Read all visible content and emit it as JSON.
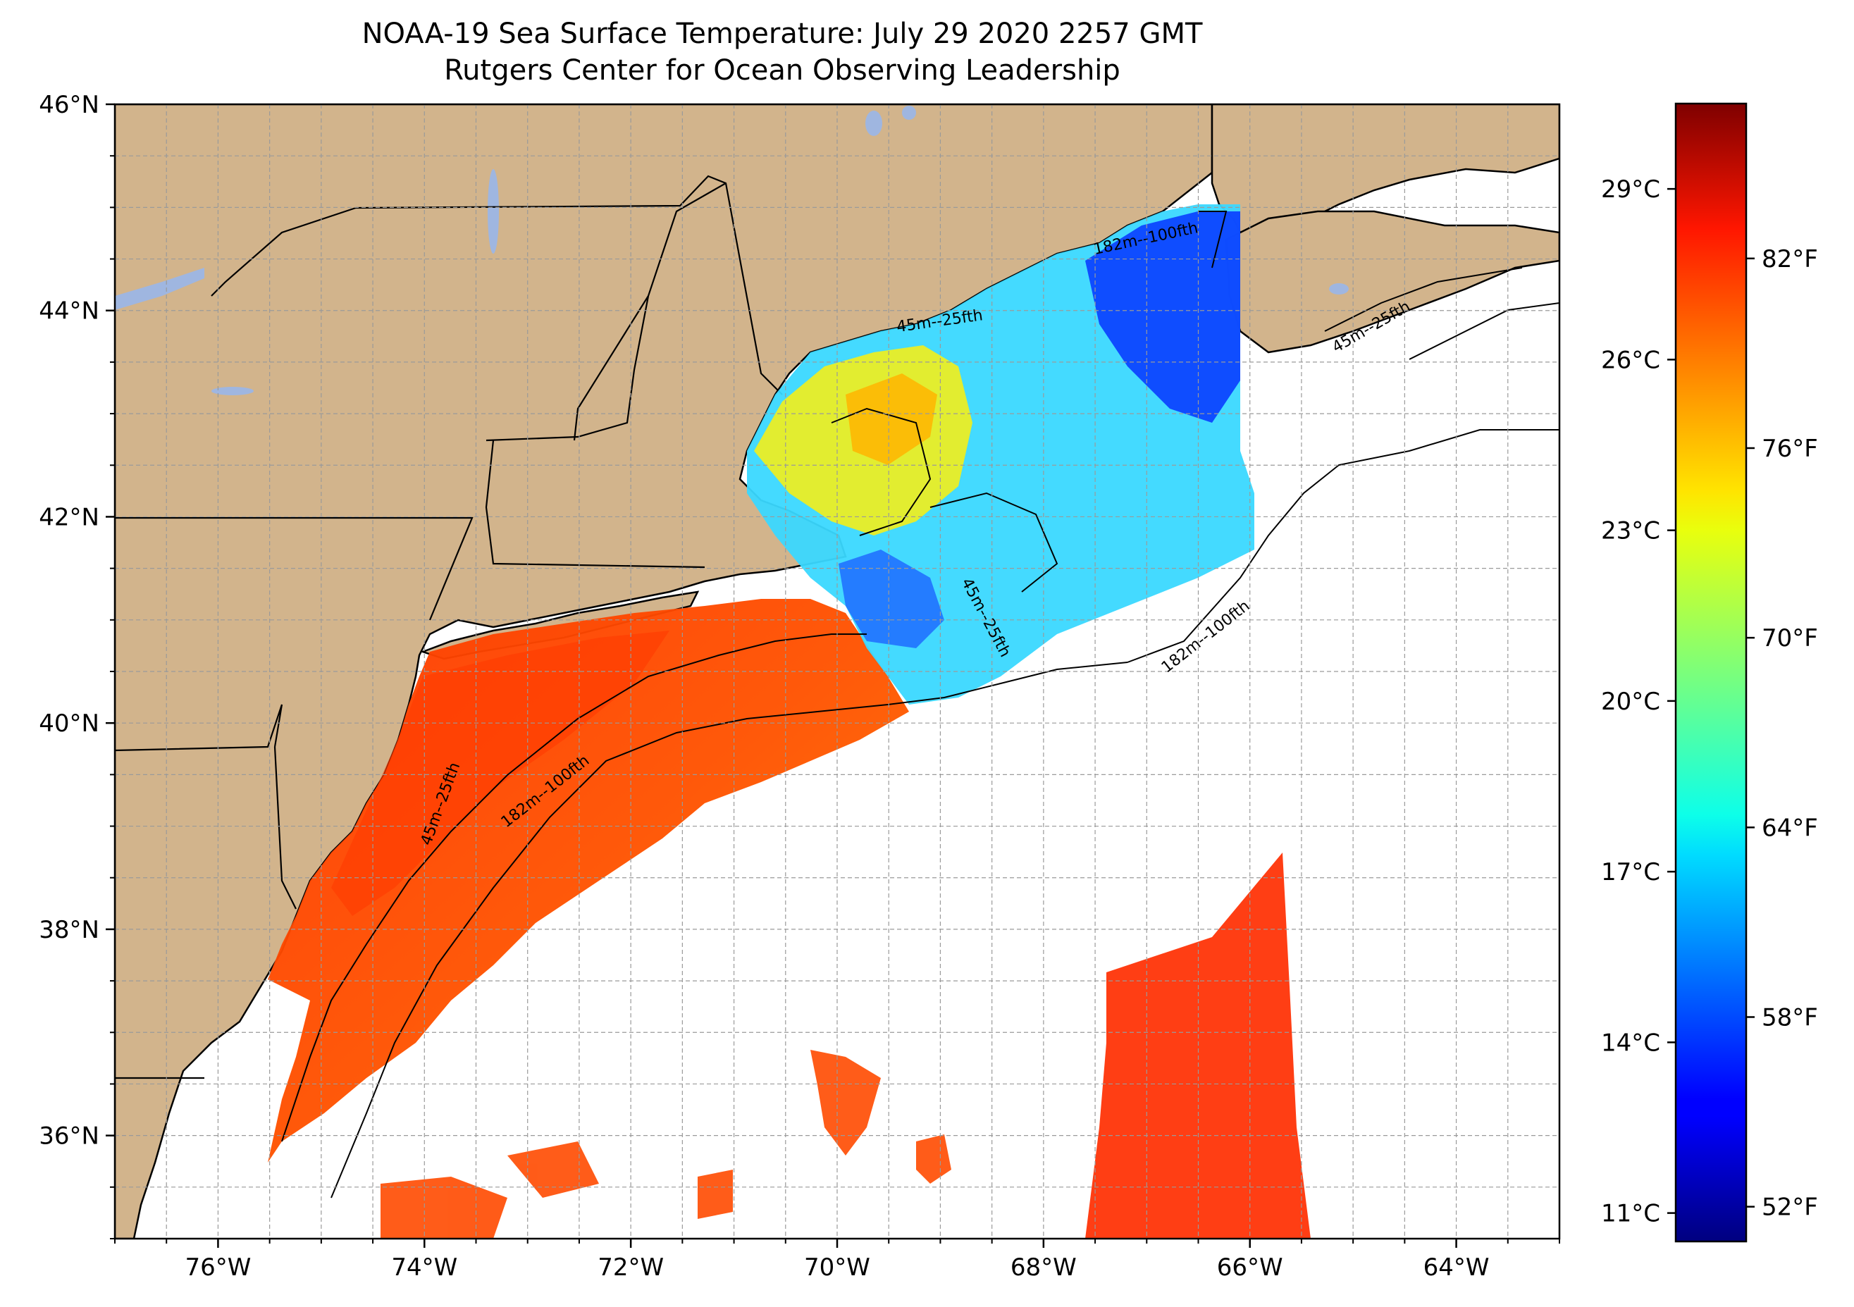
{
  "title": {
    "line1": "NOAA-19 Sea Surface Temperature: July 29 2020 2257 GMT",
    "line2": "Rutgers Center for Ocean Observing Leadership"
  },
  "map": {
    "lon_range": [
      -77,
      -63
    ],
    "lat_range": [
      35,
      46
    ],
    "gridlines": true,
    "land_color": "#d2b48c",
    "lake_color": "#9fb6e0",
    "coastline_color": "#000000",
    "lon_ticks": [
      {
        "value": -76,
        "label": "76°W"
      },
      {
        "value": -74,
        "label": "74°W"
      },
      {
        "value": -72,
        "label": "72°W"
      },
      {
        "value": -70,
        "label": "70°W"
      },
      {
        "value": -68,
        "label": "68°W"
      },
      {
        "value": -66,
        "label": "66°W"
      },
      {
        "value": -64,
        "label": "64°W"
      }
    ],
    "lat_ticks": [
      {
        "value": 46,
        "label": "46°N"
      },
      {
        "value": 44,
        "label": "44°N"
      },
      {
        "value": 42,
        "label": "42°N"
      },
      {
        "value": 40,
        "label": "40°N"
      },
      {
        "value": 38,
        "label": "38°N"
      },
      {
        "value": 36,
        "label": "36°N"
      }
    ],
    "contour_labels": [
      {
        "text": "45m--25fth",
        "lon": -69.0,
        "lat": 43.85,
        "angle": -8
      },
      {
        "text": "182m--100fth",
        "lon": -67.0,
        "lat": 44.65,
        "angle": -12
      },
      {
        "text": "45m--25fth",
        "lon": -64.8,
        "lat": 43.8,
        "angle": -30
      },
      {
        "text": "45m--25fth",
        "lon": -68.6,
        "lat": 41.0,
        "angle": 62
      },
      {
        "text": "182m--100fth",
        "lon": -66.4,
        "lat": 40.8,
        "angle": -38
      },
      {
        "text": "45m--25fth",
        "lon": -73.8,
        "lat": 39.2,
        "angle": -70
      },
      {
        "text": "182m--100fth",
        "lon": -72.8,
        "lat": 39.3,
        "angle": -38
      }
    ]
  },
  "colorbar": {
    "colormap": "jet",
    "range_c": [
      10.5,
      30.5
    ],
    "celsius_ticks": [
      {
        "value": 29,
        "label": "29°C"
      },
      {
        "value": 26,
        "label": "26°C"
      },
      {
        "value": 23,
        "label": "23°C"
      },
      {
        "value": 20,
        "label": "20°C"
      },
      {
        "value": 17,
        "label": "17°C"
      },
      {
        "value": 14,
        "label": "14°C"
      },
      {
        "value": 11,
        "label": "11°C"
      }
    ],
    "fahrenheit_ticks": [
      {
        "value": 82,
        "label": "82°F"
      },
      {
        "value": 76,
        "label": "76°F"
      },
      {
        "value": 70,
        "label": "70°F"
      },
      {
        "value": 64,
        "label": "64°F"
      },
      {
        "value": 58,
        "label": "58°F"
      },
      {
        "value": 52,
        "label": "52°F"
      }
    ]
  }
}
